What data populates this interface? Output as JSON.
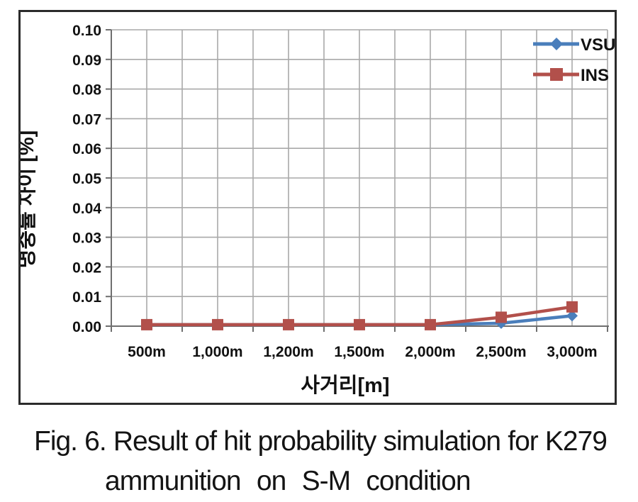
{
  "figure": {
    "caption_line1": "Fig. 6. Result of hit probability simulation for K279",
    "caption_line2": "ammunition on S-M condition"
  },
  "chart_data": {
    "type": "line",
    "title": "",
    "xlabel": "사거리[m]",
    "ylabel": "명중률 차이 [%]",
    "categories": [
      "500m",
      "1,000m",
      "1,200m",
      "1,500m",
      "2,000m",
      "2,500m",
      "3,000m"
    ],
    "series": [
      {
        "name": "VSU",
        "marker": "diamond",
        "color": "#4a7ebb",
        "values": [
          0.0005,
          0.0005,
          0.0005,
          0.0005,
          0.0005,
          0.001,
          0.0035
        ]
      },
      {
        "name": "INS",
        "marker": "square",
        "color": "#b2504b",
        "values": [
          0.0005,
          0.0005,
          0.0005,
          0.0005,
          0.0005,
          0.003,
          0.0065
        ]
      }
    ],
    "ylim": [
      0.0,
      0.1
    ],
    "ytick_step": 0.01,
    "yticks": [
      "0.10",
      "0.09",
      "0.08",
      "0.07",
      "0.06",
      "0.05",
      "0.04",
      "0.03",
      "0.02",
      "0.01",
      "0.00"
    ],
    "grid": "on",
    "legend_position": "top-right"
  },
  "colors": {
    "gridline": "#a9a9a9",
    "axis": "#6f6f6f",
    "frame_border": "#2b2b2b",
    "text": "#111111",
    "legend_text": "#15151f"
  }
}
